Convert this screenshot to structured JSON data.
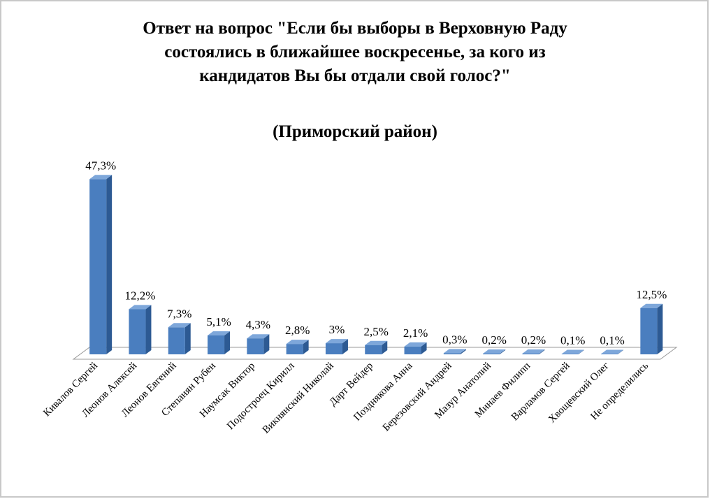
{
  "chart_data": {
    "type": "bar3d",
    "title": [
      "Ответ на вопрос \"Если бы выборы в Верховную Раду",
      "состоялись в ближайшее воскресенье, за кого из",
      "кандидатов Вы бы отдали свой голос?\""
    ],
    "subtitle": "(Приморский район)",
    "categories": [
      "Кивалов Сергей",
      "Леонов Алексей",
      "Леонов Евгений",
      "Степанян Рубен",
      "Наумсак Виктор",
      "Подостроец Кирилл",
      "Викнянский Николай",
      "Дарт Вейдер",
      "Позднякова Анна",
      "Березовский Андрей",
      "Мазур Анатолий",
      "Минаев Филипп",
      "Варламов Сергей",
      "Хвощевский Олег",
      "Не определились"
    ],
    "values": [
      47.3,
      12.2,
      7.3,
      5.1,
      4.3,
      2.8,
      3,
      2.5,
      2.1,
      0.3,
      0.2,
      0.2,
      0.1,
      0.1,
      12.5
    ],
    "value_labels": [
      "47,3%",
      "12,2%",
      "7,3%",
      "5,1%",
      "4,3%",
      "2,8%",
      "3%",
      "2,5%",
      "2,1%",
      "0,3%",
      "0,2%",
      "0,2%",
      "0,1%",
      "0,1%",
      "12,5%"
    ],
    "color": "#4a7ebf"
  }
}
